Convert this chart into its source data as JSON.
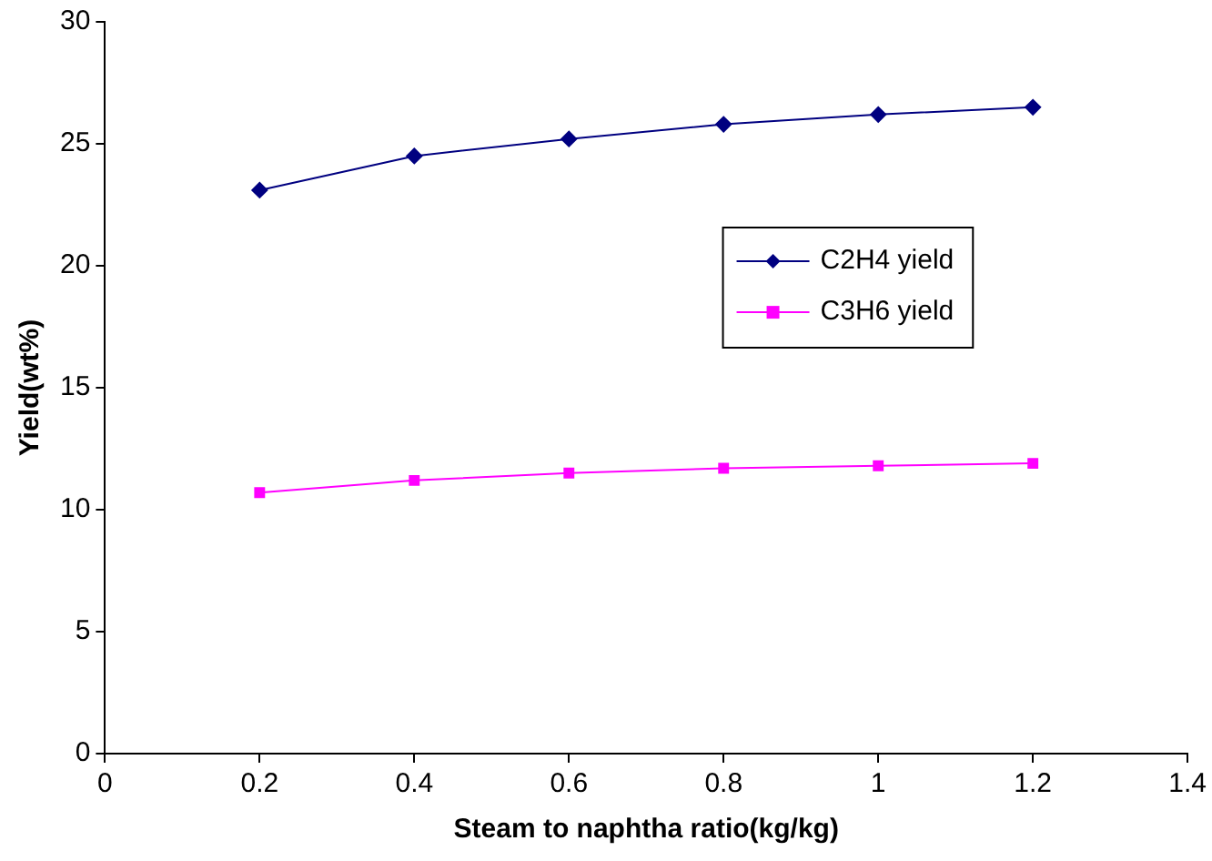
{
  "chart_data": {
    "type": "line",
    "xlabel": "Steam to naphtha ratio(kg/kg)",
    "ylabel": "Yield(wt%)",
    "x": [
      0.2,
      0.4,
      0.6,
      0.8,
      1,
      1.2
    ],
    "series": [
      {
        "name": "C2H4 yield",
        "color": "#000080",
        "marker": "diamond",
        "values": [
          23.1,
          24.5,
          25.2,
          25.8,
          26.2,
          26.5
        ]
      },
      {
        "name": "C3H6 yield",
        "color": "#ff00ff",
        "marker": "square",
        "values": [
          10.7,
          11.2,
          11.5,
          11.7,
          11.8,
          11.9
        ]
      }
    ],
    "xlim": [
      0,
      1.4
    ],
    "xticks": [
      0,
      0.2,
      0.4,
      0.6,
      0.8,
      1,
      1.2,
      1.4
    ],
    "ylim": [
      0,
      30
    ],
    "yticks": [
      0,
      5,
      10,
      15,
      20,
      25,
      30
    ],
    "grid": false,
    "legend": "center right",
    "line_style": "solid"
  }
}
